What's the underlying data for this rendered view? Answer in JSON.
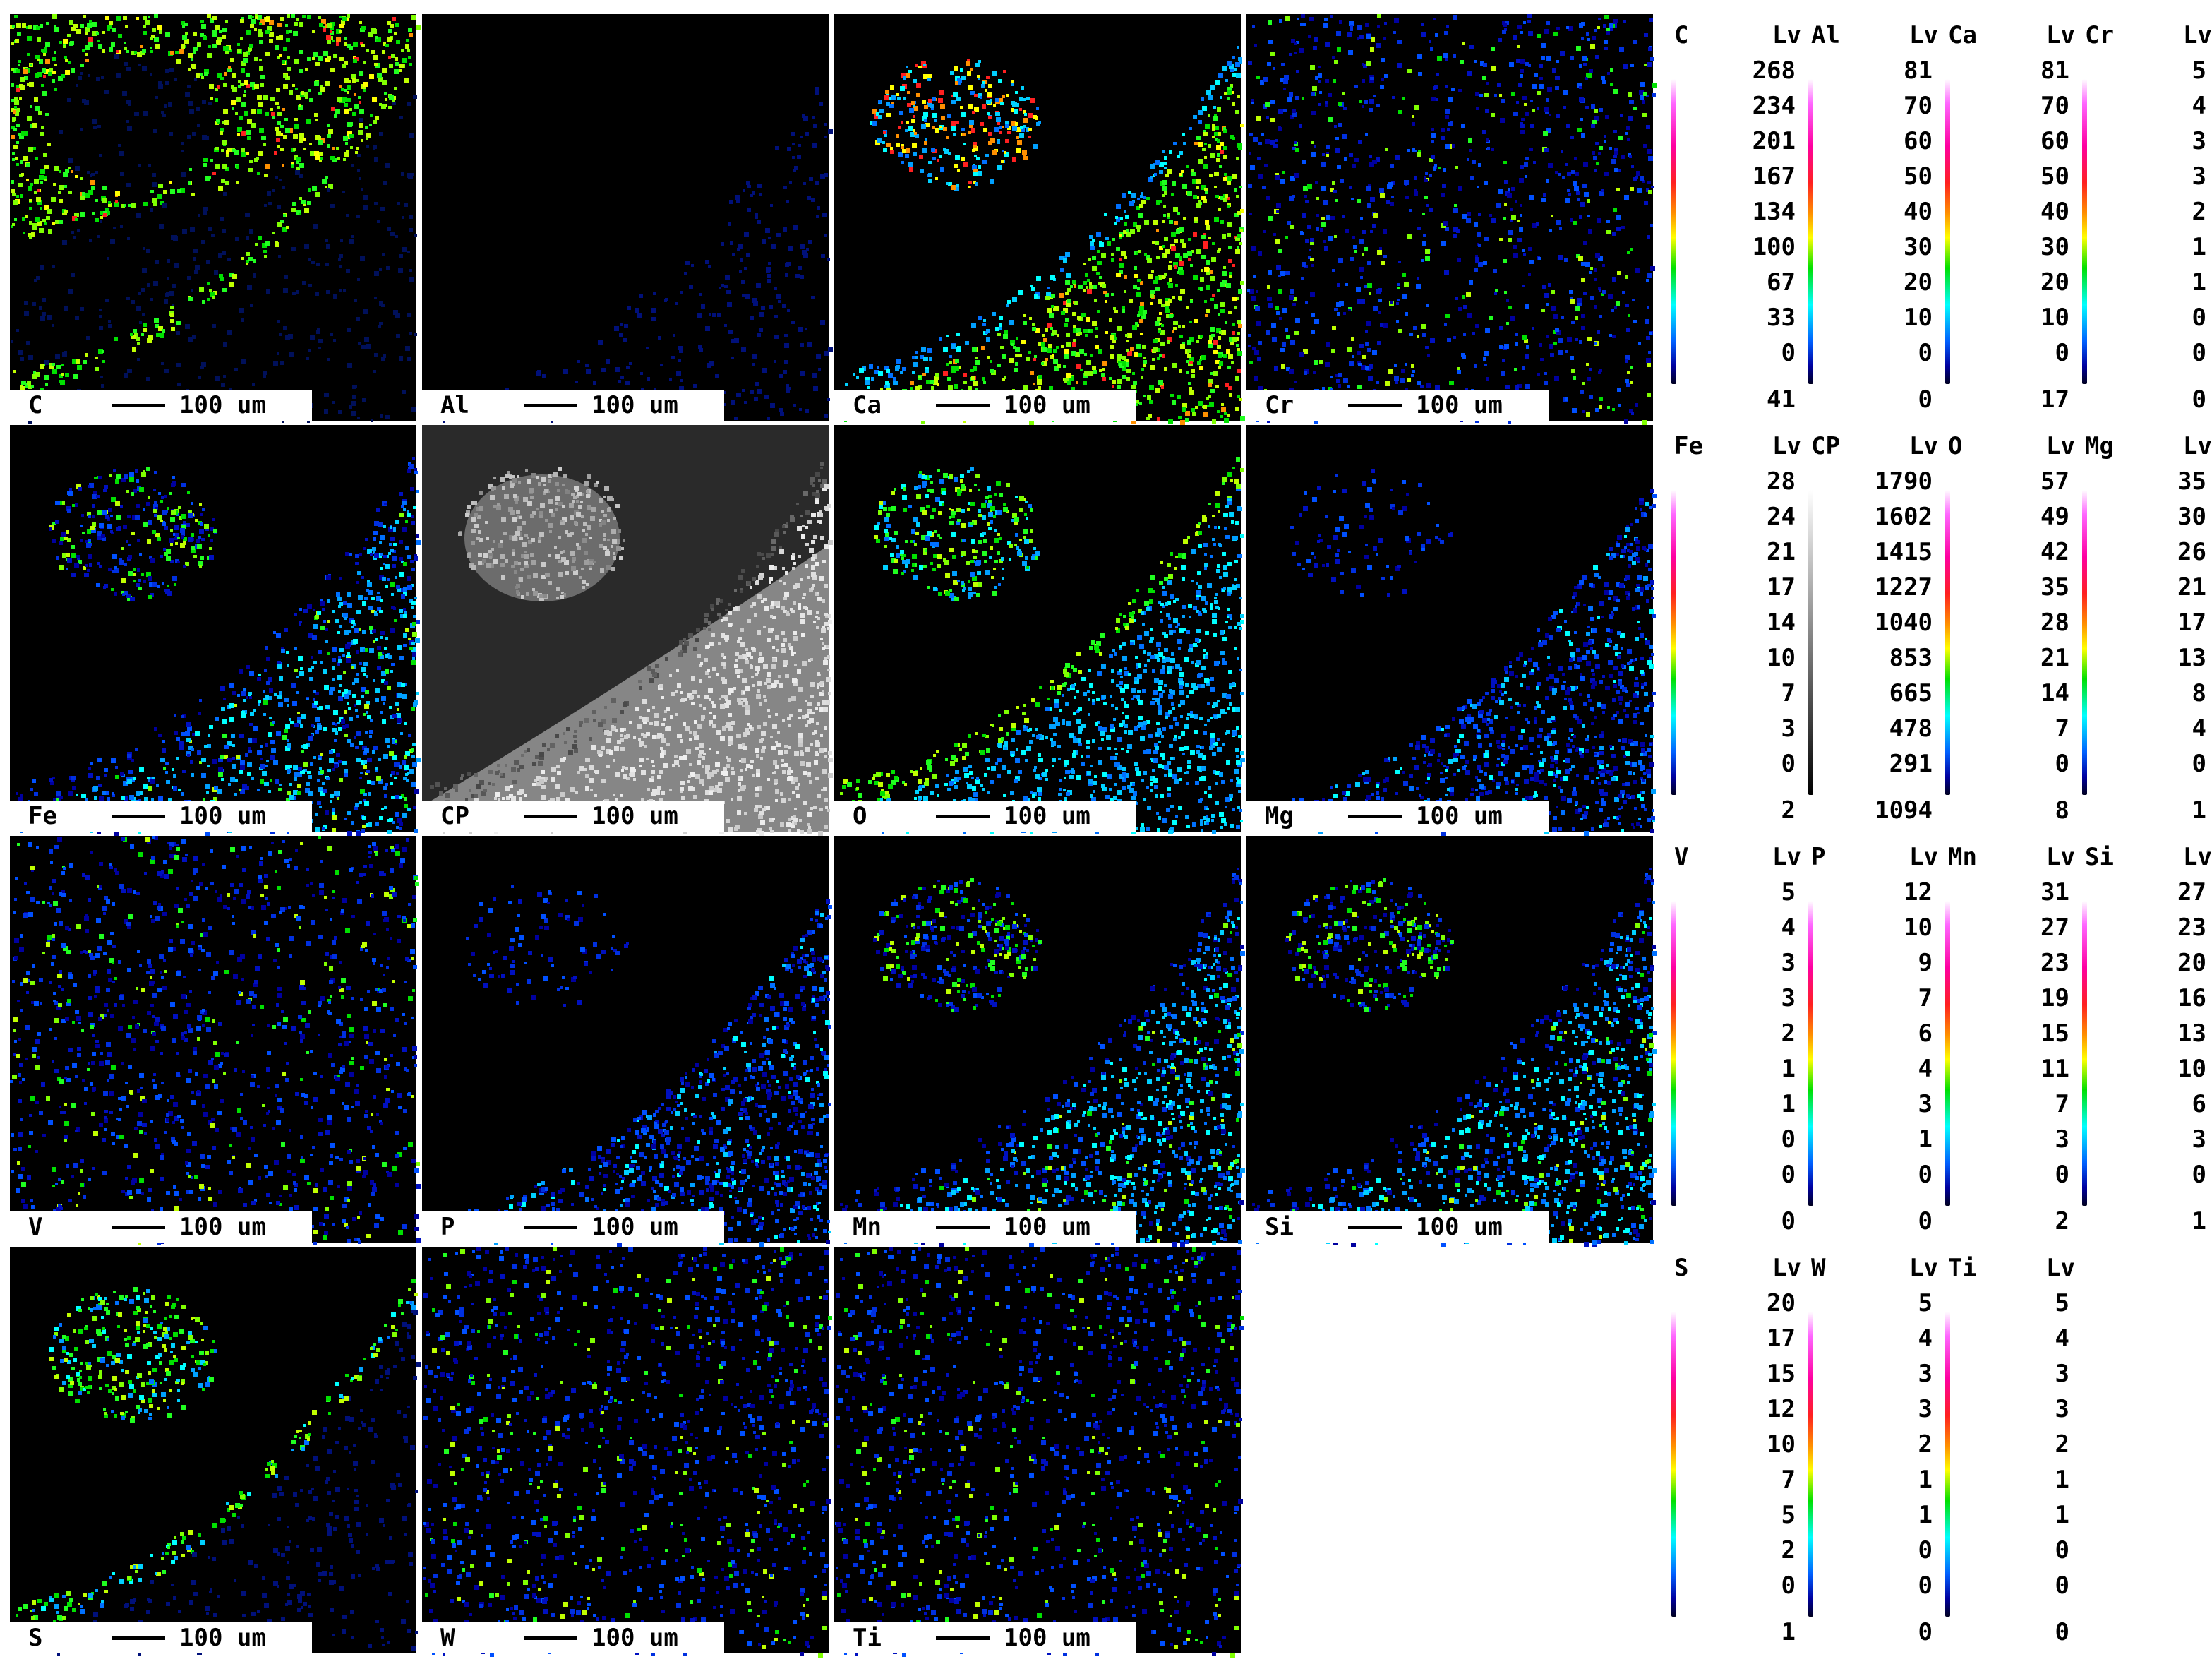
{
  "scale_bar_text": "100 um",
  "level_header": "Lv",
  "colors": {
    "background": "#000000",
    "caption_bg": "#ffffff",
    "text": "#000000",
    "colormap": [
      "#000020",
      "#0000a0",
      "#0060ff",
      "#00ffff",
      "#00e000",
      "#ffff00",
      "#ff9000",
      "#ff2020",
      "#ff00a0",
      "#ff66ff",
      "#ffffff"
    ]
  },
  "maps": [
    {
      "element": "C",
      "style": "c-high-top"
    },
    {
      "element": "Al",
      "style": "faint"
    },
    {
      "element": "Ca",
      "style": "ca-lower"
    },
    {
      "element": "Cr",
      "style": "sparse"
    },
    {
      "element": "Fe",
      "style": "lower-medium"
    },
    {
      "element": "CP",
      "style": "grayscale"
    },
    {
      "element": "O",
      "style": "o-medium"
    },
    {
      "element": "Mg",
      "style": "lower-dim"
    },
    {
      "element": "V",
      "style": "sparse"
    },
    {
      "element": "P",
      "style": "lower-dim"
    },
    {
      "element": "Mn",
      "style": "lower-medium"
    },
    {
      "element": "Si",
      "style": "lower-medium"
    },
    {
      "element": "S",
      "style": "s-band"
    },
    {
      "element": "W",
      "style": "sparse"
    },
    {
      "element": "Ti",
      "style": "sparse"
    }
  ],
  "legends": [
    [
      {
        "element": "C",
        "levels": [
          "268",
          "234",
          "201",
          "167",
          "134",
          "100",
          "67",
          "33",
          "0"
        ],
        "average": "41"
      },
      {
        "element": "Al",
        "levels": [
          "81",
          "70",
          "60",
          "50",
          "40",
          "30",
          "20",
          "10",
          "0"
        ],
        "average": "0"
      },
      {
        "element": "Ca",
        "levels": [
          "81",
          "70",
          "60",
          "50",
          "40",
          "30",
          "20",
          "10",
          "0"
        ],
        "average": "17"
      },
      {
        "element": "Cr",
        "levels": [
          "5",
          "4",
          "3",
          "3",
          "2",
          "1",
          "1",
          "0",
          "0"
        ],
        "average": "0"
      }
    ],
    [
      {
        "element": "Fe",
        "levels": [
          "28",
          "24",
          "21",
          "17",
          "14",
          "10",
          "7",
          "3",
          "0"
        ],
        "average": "2"
      },
      {
        "element": "CP",
        "levels": [
          "1790",
          "1602",
          "1415",
          "1227",
          "1040",
          "853",
          "665",
          "478",
          "291"
        ],
        "average": "1094",
        "grayscale": true
      },
      {
        "element": "O",
        "levels": [
          "57",
          "49",
          "42",
          "35",
          "28",
          "21",
          "14",
          "7",
          "0"
        ],
        "average": "8"
      },
      {
        "element": "Mg",
        "levels": [
          "35",
          "30",
          "26",
          "21",
          "17",
          "13",
          "8",
          "4",
          "0"
        ],
        "average": "1"
      }
    ],
    [
      {
        "element": "V",
        "levels": [
          "5",
          "4",
          "3",
          "3",
          "2",
          "1",
          "1",
          "0",
          "0"
        ],
        "average": "0"
      },
      {
        "element": "P",
        "levels": [
          "12",
          "10",
          "9",
          "7",
          "6",
          "4",
          "3",
          "1",
          "0"
        ],
        "average": "0"
      },
      {
        "element": "Mn",
        "levels": [
          "31",
          "27",
          "23",
          "19",
          "15",
          "11",
          "7",
          "3",
          "0"
        ],
        "average": "2"
      },
      {
        "element": "Si",
        "levels": [
          "27",
          "23",
          "20",
          "16",
          "13",
          "10",
          "6",
          "3",
          "0"
        ],
        "average": "1"
      }
    ],
    [
      {
        "element": "S",
        "levels": [
          "20",
          "17",
          "15",
          "12",
          "10",
          "7",
          "5",
          "2",
          "0"
        ],
        "average": "1"
      },
      {
        "element": "W",
        "levels": [
          "5",
          "4",
          "3",
          "3",
          "2",
          "1",
          "1",
          "0",
          "0"
        ],
        "average": "0"
      },
      {
        "element": "Ti",
        "levels": [
          "5",
          "4",
          "3",
          "3",
          "2",
          "1",
          "1",
          "0",
          "0"
        ],
        "average": "0"
      }
    ]
  ]
}
